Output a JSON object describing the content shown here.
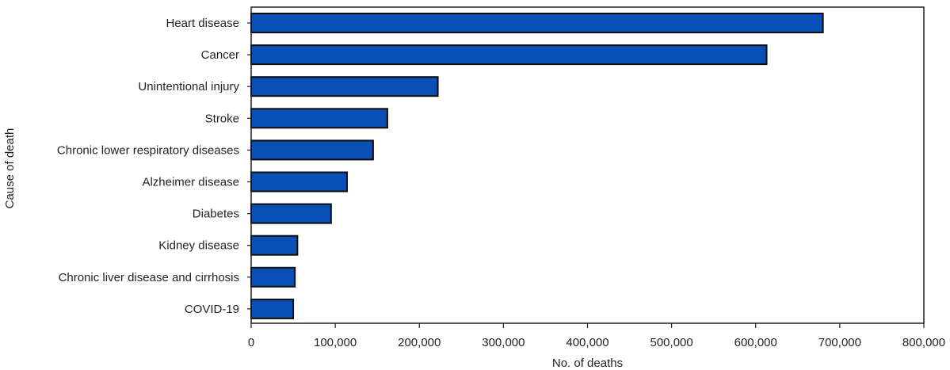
{
  "chart_data": {
    "type": "bar",
    "orientation": "horizontal",
    "title": "",
    "xlabel": "No. of deaths",
    "ylabel": "Cause of death",
    "categories": [
      "Heart disease",
      "Cancer",
      "Unintentional injury",
      "Stroke",
      "Chronic lower respiratory diseases",
      "Alzheimer disease",
      "Diabetes",
      "Kidney disease",
      "Chronic liver disease and cirrhosis",
      "COVID-19"
    ],
    "values": [
      680000,
      613000,
      222000,
      162000,
      145000,
      114000,
      95000,
      55000,
      52000,
      50000
    ],
    "xlim": [
      0,
      800000
    ],
    "xticks": [
      0,
      100000,
      200000,
      300000,
      400000,
      500000,
      600000,
      700000,
      800000
    ],
    "xtick_labels": [
      "0",
      "100,000",
      "200,000",
      "300,000",
      "400,000",
      "500,000",
      "600,000",
      "700,000",
      "800,000"
    ],
    "grid": false,
    "bar_color": "#0a4fb5",
    "bar_edge_color": "#0d0d0d"
  }
}
